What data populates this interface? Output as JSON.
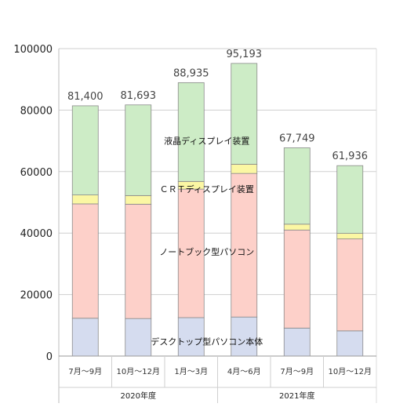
{
  "chart_data": {
    "type": "bar",
    "stacked": true,
    "categories": [
      "7月～9月",
      "10月～12月",
      "1月～3月",
      "4月～6月",
      "7月～9月",
      "10月～12月"
    ],
    "groups": [
      {
        "label": "2020年度",
        "categories": [
          0,
          1,
          2
        ]
      },
      {
        "label": "2021年度",
        "categories": [
          3,
          4,
          5
        ]
      }
    ],
    "series": [
      {
        "name": "デスクトップ型パソコン本体",
        "color": "#d5dcef",
        "values": [
          12300,
          12200,
          12500,
          12700,
          9100,
          8200
        ]
      },
      {
        "name": "ノートブック型パソコン",
        "color": "#fdd0c9",
        "values": [
          37200,
          37200,
          41800,
          46700,
          31900,
          29900
        ]
      },
      {
        "name": "ＣＲＴディスプレイ装置",
        "color": "#fbf7a3",
        "values": [
          2900,
          2800,
          2500,
          3000,
          1900,
          1800
        ]
      },
      {
        "name": "液晶ディスプレイ装置",
        "color": "#cdecc6",
        "values": [
          29000,
          29493,
          32135,
          32793,
          24849,
          22036
        ]
      }
    ],
    "totals": [
      "81,400",
      "81,693",
      "88,935",
      "95,193",
      "67,749",
      "61,936"
    ],
    "highlight_index": 5,
    "highlight_color": "#e8342d",
    "ylim": [
      0,
      100000
    ],
    "yticks": [
      "0",
      "20000",
      "40000",
      "60000",
      "80000",
      "100000"
    ],
    "grid": "horizontal"
  }
}
